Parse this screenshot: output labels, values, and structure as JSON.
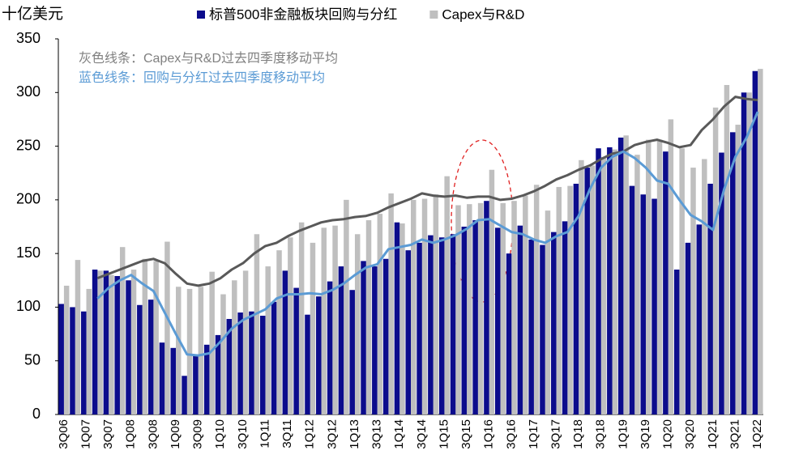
{
  "chart_data": {
    "type": "bar",
    "y_label": "十亿美元",
    "categories": [
      "3Q06",
      null,
      "1Q07",
      null,
      "3Q07",
      null,
      "1Q08",
      null,
      "3Q08",
      null,
      "1Q09",
      null,
      "3Q09",
      null,
      "1Q10",
      null,
      "3Q10",
      null,
      "1Q11",
      null,
      "3Q11",
      null,
      "1Q12",
      null,
      "3Q12",
      null,
      "1Q13",
      null,
      "3Q13",
      null,
      "1Q14",
      null,
      "3Q14",
      null,
      "1Q15",
      null,
      "3Q15",
      null,
      "1Q16",
      null,
      "3Q16",
      null,
      "1Q17",
      null,
      "3Q17",
      null,
      "1Q18",
      null,
      "3Q18",
      null,
      "1Q19",
      null,
      "3Q19",
      null,
      "1Q20",
      null,
      "3Q20",
      null,
      "1Q21",
      null,
      "3Q21",
      null,
      "1Q22"
    ],
    "series": [
      {
        "name": "标普500非金融板块回购与分红",
        "color": "#0c0c8c",
        "values": [
          103,
          100,
          96,
          135,
          134,
          129,
          125,
          102,
          107,
          67,
          62,
          36,
          56,
          65,
          74,
          89,
          95,
          96,
          92,
          105,
          134,
          118,
          93,
          110,
          124,
          138,
          116,
          143,
          138,
          145,
          179,
          153,
          160,
          167,
          165,
          168,
          175,
          181,
          199,
          174,
          150,
          176,
          163,
          158,
          170,
          180,
          215,
          230,
          248,
          249,
          258,
          213,
          205,
          201,
          245,
          135,
          160,
          177,
          215,
          244,
          263,
          300,
          320
        ]
      },
      {
        "name": "Capex与R&D",
        "color": "#bfbfbf",
        "values": [
          120,
          144,
          117,
          134,
          130,
          156,
          135,
          145,
          143,
          161,
          119,
          117,
          119,
          133,
          112,
          125,
          134,
          168,
          138,
          153,
          165,
          179,
          160,
          174,
          176,
          200,
          168,
          181,
          187,
          206,
          178,
          200,
          201,
          205,
          222,
          195,
          196,
          197,
          228,
          197,
          199,
          204,
          214,
          190,
          212,
          213,
          237,
          232,
          240,
          247,
          260,
          242,
          256,
          256,
          275,
          248,
          230,
          238,
          286,
          307,
          270,
          300,
          322
        ]
      },
      {
        "kind": "line",
        "color": "#595959",
        "values": [
          null,
          null,
          null,
          127,
          131,
          135,
          139,
          143,
          145,
          141,
          131,
          122,
          120,
          122,
          127,
          135,
          141,
          150,
          157,
          160,
          166,
          171,
          175,
          179,
          181,
          182,
          184,
          185,
          188,
          193,
          197,
          201,
          206,
          204,
          203,
          204,
          202,
          203,
          203,
          200,
          201,
          204,
          208,
          213,
          219,
          223,
          228,
          232,
          238,
          243,
          245,
          251,
          254,
          256,
          253,
          249,
          251,
          265,
          275,
          287,
          296,
          294,
          293
        ]
      },
      {
        "kind": "line",
        "color": "#5b9bd5",
        "values": [
          null,
          null,
          null,
          108,
          118,
          125,
          130,
          122,
          115,
          95,
          75,
          56,
          55,
          57,
          68,
          80,
          88,
          93,
          98,
          108,
          112,
          112,
          113,
          112,
          116,
          122,
          130,
          137,
          140,
          154,
          156,
          158,
          163,
          160,
          163,
          167,
          173,
          181,
          182,
          176,
          170,
          168,
          163,
          160,
          166,
          170,
          185,
          210,
          230,
          240,
          245,
          239,
          230,
          218,
          215,
          200,
          186,
          180,
          172,
          210,
          240,
          258,
          282
        ]
      }
    ],
    "annotations": [
      {
        "text": "灰色线条：Capex与R&D过去四季度移动平均",
        "color": "#808080"
      },
      {
        "text": "蓝色线条：回购与分红过去四季度移动平均",
        "color": "#5b9bd5"
      }
    ],
    "ylim": [
      0,
      350
    ],
    "yticks": [
      0,
      50,
      100,
      150,
      200,
      250,
      300,
      350
    ],
    "grid": false
  }
}
